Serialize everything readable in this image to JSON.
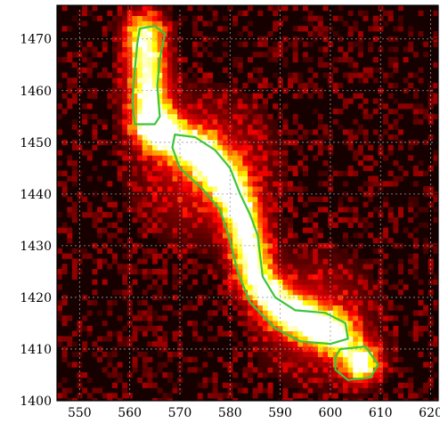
{
  "chart_data": {
    "type": "heatmap",
    "title": "",
    "xlabel": "",
    "ylabel": "",
    "xlim": [
      545.5,
      621.5
    ],
    "ylim": [
      1400,
      1476.5
    ],
    "x_ticks": [
      550,
      560,
      570,
      580,
      590,
      600,
      610,
      620
    ],
    "y_ticks": [
      1400,
      1410,
      1420,
      1430,
      1440,
      1450,
      1460,
      1470
    ],
    "grid": true,
    "grid_style": "dotted",
    "colormap": "black-red-yellow-white (hot)",
    "background_color": "#160000",
    "contour_color": "#3ec43a",
    "features": [
      {
        "name": "",
        "kind": "ridge",
        "path": [
          [
            563,
            1471
          ],
          [
            563.5,
            1463
          ],
          [
            564,
            1455
          ]
        ],
        "width": 2.8,
        "peak": 0.95
      },
      {
        "name": "",
        "kind": "ridge",
        "path": [
          [
            566,
            1452
          ],
          [
            574,
            1448
          ],
          [
            579,
            1443
          ],
          [
            582,
            1437
          ],
          [
            583.5,
            1431
          ],
          [
            585,
            1424
          ],
          [
            590,
            1418
          ],
          [
            596,
            1415
          ],
          [
            601,
            1413
          ]
        ],
        "width": 2.6,
        "peak": 1.0
      },
      {
        "name": "",
        "kind": "blob",
        "center": [
          606,
          1407.5
        ],
        "radius": 2.6,
        "peak": 1.0
      },
      {
        "name": "",
        "kind": "diffuse",
        "center": [
          575,
          1445
        ],
        "radius": 9,
        "peak": 0.35
      },
      {
        "name": "",
        "kind": "diffuse",
        "center": [
          597,
          1416
        ],
        "radius": 8,
        "peak": 0.3
      }
    ],
    "contours": [
      [
        [
          562,
          1472
        ],
        [
          565,
          1472.5
        ],
        [
          567,
          1471
        ],
        [
          566,
          1466
        ],
        [
          565.5,
          1461
        ],
        [
          566,
          1455
        ],
        [
          565,
          1453.5
        ],
        [
          561,
          1453.5
        ],
        [
          560.5,
          1458
        ],
        [
          561,
          1464
        ],
        [
          561.5,
          1469
        ]
      ],
      [
        [
          569,
          1451.5
        ],
        [
          573,
          1451
        ],
        [
          577,
          1448.5
        ],
        [
          580,
          1445
        ],
        [
          582,
          1440
        ],
        [
          584,
          1436
        ],
        [
          585.5,
          1432
        ],
        [
          586,
          1428
        ],
        [
          586.5,
          1424
        ],
        [
          589,
          1420
        ],
        [
          593,
          1417.5
        ],
        [
          599,
          1417
        ],
        [
          603,
          1415
        ],
        [
          603.5,
          1412
        ],
        [
          600,
          1411
        ],
        [
          594,
          1411.5
        ],
        [
          589,
          1414
        ],
        [
          584,
          1419
        ],
        [
          581.5,
          1425
        ],
        [
          580,
          1431
        ],
        [
          578,
          1437
        ],
        [
          574.5,
          1441
        ],
        [
          570,
          1445
        ],
        [
          568.5,
          1449
        ]
      ],
      [
        [
          602,
          1410
        ],
        [
          607,
          1410.5
        ],
        [
          609.5,
          1407
        ],
        [
          608,
          1404.5
        ],
        [
          603.5,
          1404
        ],
        [
          601,
          1406
        ],
        [
          601,
          1408.5
        ]
      ]
    ]
  }
}
